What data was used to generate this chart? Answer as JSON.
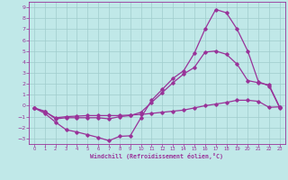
{
  "bg_color": "#c0e8e8",
  "grid_color": "#a0cccc",
  "line_color": "#993399",
  "marker": "D",
  "marker_size": 1.8,
  "linewidth": 0.9,
  "xlabel": "Windchill (Refroidissement éolien,°C)",
  "xlim": [
    -0.5,
    23.5
  ],
  "ylim": [
    -3.5,
    9.5
  ],
  "xticks": [
    0,
    1,
    2,
    3,
    4,
    5,
    6,
    7,
    8,
    9,
    10,
    11,
    12,
    13,
    14,
    15,
    16,
    17,
    18,
    19,
    20,
    21,
    22,
    23
  ],
  "yticks": [
    -3,
    -2,
    -1,
    0,
    1,
    2,
    3,
    4,
    5,
    6,
    7,
    8,
    9
  ],
  "line1_x": [
    0,
    1,
    2,
    3,
    4,
    5,
    6,
    7,
    8,
    9,
    10,
    11,
    12,
    13,
    14,
    15,
    16,
    17,
    18,
    19,
    20,
    21,
    22,
    23
  ],
  "line1_y": [
    -0.2,
    -0.7,
    -1.5,
    -2.2,
    -2.4,
    -2.65,
    -2.9,
    -3.2,
    -2.8,
    -2.75,
    -1.1,
    0.5,
    1.5,
    2.5,
    3.2,
    4.8,
    7.0,
    8.8,
    8.5,
    7.0,
    5.0,
    2.2,
    1.8,
    -0.2
  ],
  "line2_x": [
    0,
    1,
    2,
    3,
    4,
    5,
    6,
    7,
    8,
    9,
    10,
    11,
    12,
    13,
    14,
    15,
    16,
    17,
    18,
    19,
    20,
    21,
    22,
    23
  ],
  "line2_y": [
    -0.2,
    -0.55,
    -1.1,
    -1.0,
    -0.95,
    -0.9,
    -0.9,
    -0.9,
    -0.9,
    -0.85,
    -0.8,
    -0.7,
    -0.6,
    -0.5,
    -0.4,
    -0.2,
    0.0,
    0.15,
    0.3,
    0.5,
    0.5,
    0.4,
    -0.15,
    -0.1
  ],
  "line3_x": [
    0,
    1,
    2,
    3,
    4,
    5,
    6,
    7,
    8,
    9,
    10,
    11,
    12,
    13,
    14,
    15,
    16,
    17,
    18,
    19,
    20,
    21,
    22,
    23
  ],
  "line3_y": [
    -0.2,
    -0.5,
    -1.2,
    -1.1,
    -1.1,
    -1.1,
    -1.1,
    -1.2,
    -1.0,
    -0.9,
    -0.6,
    0.3,
    1.2,
    2.1,
    2.9,
    3.5,
    4.9,
    5.0,
    4.7,
    3.8,
    2.3,
    2.1,
    1.9,
    -0.15
  ]
}
